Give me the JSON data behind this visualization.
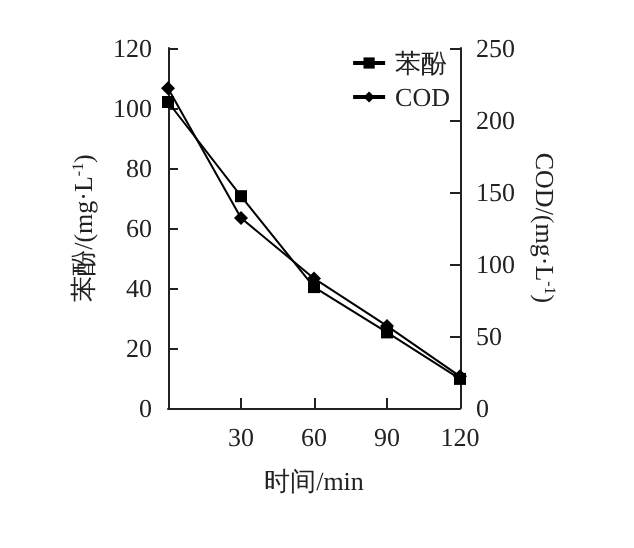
{
  "chart_data": {
    "type": "line",
    "xlabel": "时间/min",
    "ylabel": "苯酚/(mg·L$^{-1}$)",
    "y2label": "COD/(mg·L$^{-1}$)",
    "x": [
      0,
      30,
      60,
      90,
      120
    ],
    "series": [
      {
        "name": "苯酚",
        "color": "#000000",
        "marker": "square",
        "values": [
          102,
          70.6,
          40.3,
          25.2,
          9.7
        ]
      },
      {
        "name": "COD",
        "color": "#000000",
        "marker": "diamond",
        "axis": "y2",
        "values": [
          222,
          132,
          90,
          57,
          22
        ]
      }
    ],
    "xlim": [
      0,
      120
    ],
    "xticks": [
      {
        "value": 0,
        "label": null
      },
      30,
      60,
      90,
      120
    ],
    "ylim": [
      0,
      120
    ],
    "yticks": [
      0,
      20,
      40,
      60,
      80,
      100,
      120
    ],
    "y2lim": [
      0,
      250
    ],
    "y2ticks": [
      0,
      50,
      100,
      150,
      200,
      250
    ],
    "legend": "top right",
    "grid": false,
    "line_style": "solid"
  }
}
